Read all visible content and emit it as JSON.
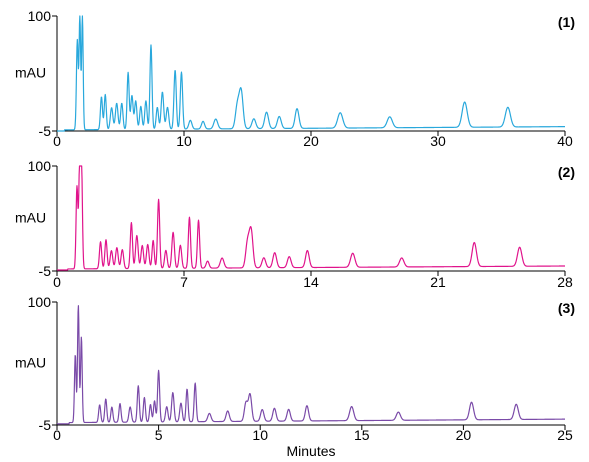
{
  "chart_data": [
    {
      "type": "line",
      "panel_label": "(1)",
      "ylabel": "mAU",
      "xlabel": "",
      "xlim": [
        0,
        40
      ],
      "ylim": [
        -5,
        100
      ],
      "x_ticks": [
        0,
        10,
        20,
        30,
        40
      ],
      "y_ticks": [
        -5,
        100
      ],
      "color": "#29a8dc",
      "baseline": -4,
      "drift_end": -1,
      "peaks": [
        [
          1.6,
          0.07,
          78
        ],
        [
          1.8,
          0.06,
          100
        ],
        [
          2.0,
          0.06,
          100
        ],
        [
          3.5,
          0.08,
          26
        ],
        [
          3.8,
          0.08,
          28
        ],
        [
          4.3,
          0.1,
          16
        ],
        [
          4.7,
          0.1,
          20
        ],
        [
          5.1,
          0.09,
          20
        ],
        [
          5.6,
          0.08,
          48
        ],
        [
          5.9,
          0.09,
          27
        ],
        [
          6.2,
          0.09,
          22
        ],
        [
          6.6,
          0.09,
          17
        ],
        [
          7.0,
          0.09,
          22
        ],
        [
          7.4,
          0.08,
          73
        ],
        [
          7.9,
          0.09,
          16
        ],
        [
          8.3,
          0.1,
          30
        ],
        [
          8.7,
          0.1,
          16
        ],
        [
          9.3,
          0.09,
          50
        ],
        [
          9.8,
          0.09,
          48
        ],
        [
          10.5,
          0.12,
          4
        ],
        [
          11.5,
          0.12,
          3
        ],
        [
          12.5,
          0.15,
          5
        ],
        [
          14.2,
          0.15,
          17
        ],
        [
          14.5,
          0.15,
          30
        ],
        [
          15.5,
          0.15,
          5
        ],
        [
          16.5,
          0.15,
          11
        ],
        [
          17.5,
          0.15,
          7
        ],
        [
          18.9,
          0.15,
          14
        ],
        [
          22.3,
          0.2,
          10
        ],
        [
          26.2,
          0.2,
          6
        ],
        [
          32.1,
          0.2,
          19
        ],
        [
          35.5,
          0.2,
          14
        ]
      ]
    },
    {
      "type": "line",
      "panel_label": "(2)",
      "ylabel": "mAU",
      "xlabel": "",
      "xlim": [
        0,
        28
      ],
      "ylim": [
        -5,
        100
      ],
      "x_ticks": [
        0,
        7,
        14,
        21,
        28
      ],
      "y_ticks": [
        -5,
        100
      ],
      "color": "#e0148c",
      "baseline": -3,
      "drift_end": 0,
      "peaks": [
        [
          1.1,
          0.05,
          79
        ],
        [
          1.25,
          0.05,
          100
        ],
        [
          1.35,
          0.05,
          100
        ],
        [
          2.4,
          0.06,
          24
        ],
        [
          2.7,
          0.06,
          26
        ],
        [
          3.0,
          0.07,
          15
        ],
        [
          3.3,
          0.07,
          18
        ],
        [
          3.6,
          0.07,
          16
        ],
        [
          4.1,
          0.06,
          43
        ],
        [
          4.4,
          0.07,
          30
        ],
        [
          4.7,
          0.07,
          20
        ],
        [
          5.0,
          0.07,
          21
        ],
        [
          5.3,
          0.06,
          25
        ],
        [
          5.6,
          0.06,
          66
        ],
        [
          6.0,
          0.07,
          15
        ],
        [
          6.4,
          0.07,
          33
        ],
        [
          6.8,
          0.07,
          20
        ],
        [
          7.3,
          0.06,
          48
        ],
        [
          7.8,
          0.06,
          45
        ],
        [
          8.3,
          0.08,
          4
        ],
        [
          9.1,
          0.1,
          7
        ],
        [
          10.5,
          0.1,
          22
        ],
        [
          10.7,
          0.1,
          34
        ],
        [
          11.4,
          0.1,
          7
        ],
        [
          12.0,
          0.1,
          12
        ],
        [
          12.8,
          0.1,
          8
        ],
        [
          13.8,
          0.1,
          14
        ],
        [
          16.3,
          0.12,
          11
        ],
        [
          19.0,
          0.12,
          6
        ],
        [
          23.0,
          0.12,
          21
        ],
        [
          25.5,
          0.12,
          16
        ]
      ]
    },
    {
      "type": "line",
      "panel_label": "(3)",
      "ylabel": "mAU",
      "xlabel": "Minutes",
      "xlim": [
        0,
        25
      ],
      "ylim": [
        -5,
        100
      ],
      "x_ticks": [
        0,
        5,
        10,
        15,
        20,
        25
      ],
      "y_ticks": [
        -5,
        100
      ],
      "color": "#7a4aa8",
      "baseline": -3,
      "drift_end": 0,
      "peaks": [
        [
          0.9,
          0.04,
          55
        ],
        [
          1.05,
          0.04,
          97
        ],
        [
          1.2,
          0.04,
          70
        ],
        [
          2.1,
          0.05,
          12
        ],
        [
          2.4,
          0.05,
          17
        ],
        [
          2.7,
          0.05,
          10
        ],
        [
          3.1,
          0.05,
          13
        ],
        [
          3.6,
          0.06,
          10
        ],
        [
          4.0,
          0.05,
          28
        ],
        [
          4.3,
          0.05,
          18
        ],
        [
          4.6,
          0.05,
          12
        ],
        [
          4.8,
          0.05,
          15
        ],
        [
          5.0,
          0.05,
          41
        ],
        [
          5.4,
          0.06,
          10
        ],
        [
          5.7,
          0.06,
          22
        ],
        [
          6.1,
          0.06,
          13
        ],
        [
          6.4,
          0.05,
          25
        ],
        [
          6.8,
          0.05,
          30
        ],
        [
          7.5,
          0.08,
          4
        ],
        [
          8.4,
          0.08,
          6
        ],
        [
          9.3,
          0.08,
          13
        ],
        [
          9.5,
          0.08,
          20
        ],
        [
          10.1,
          0.08,
          7
        ],
        [
          10.7,
          0.08,
          8
        ],
        [
          11.4,
          0.08,
          7
        ],
        [
          12.3,
          0.08,
          10
        ],
        [
          14.5,
          0.1,
          9
        ],
        [
          16.8,
          0.1,
          4
        ],
        [
          20.4,
          0.1,
          12
        ],
        [
          22.6,
          0.1,
          10
        ]
      ]
    }
  ]
}
